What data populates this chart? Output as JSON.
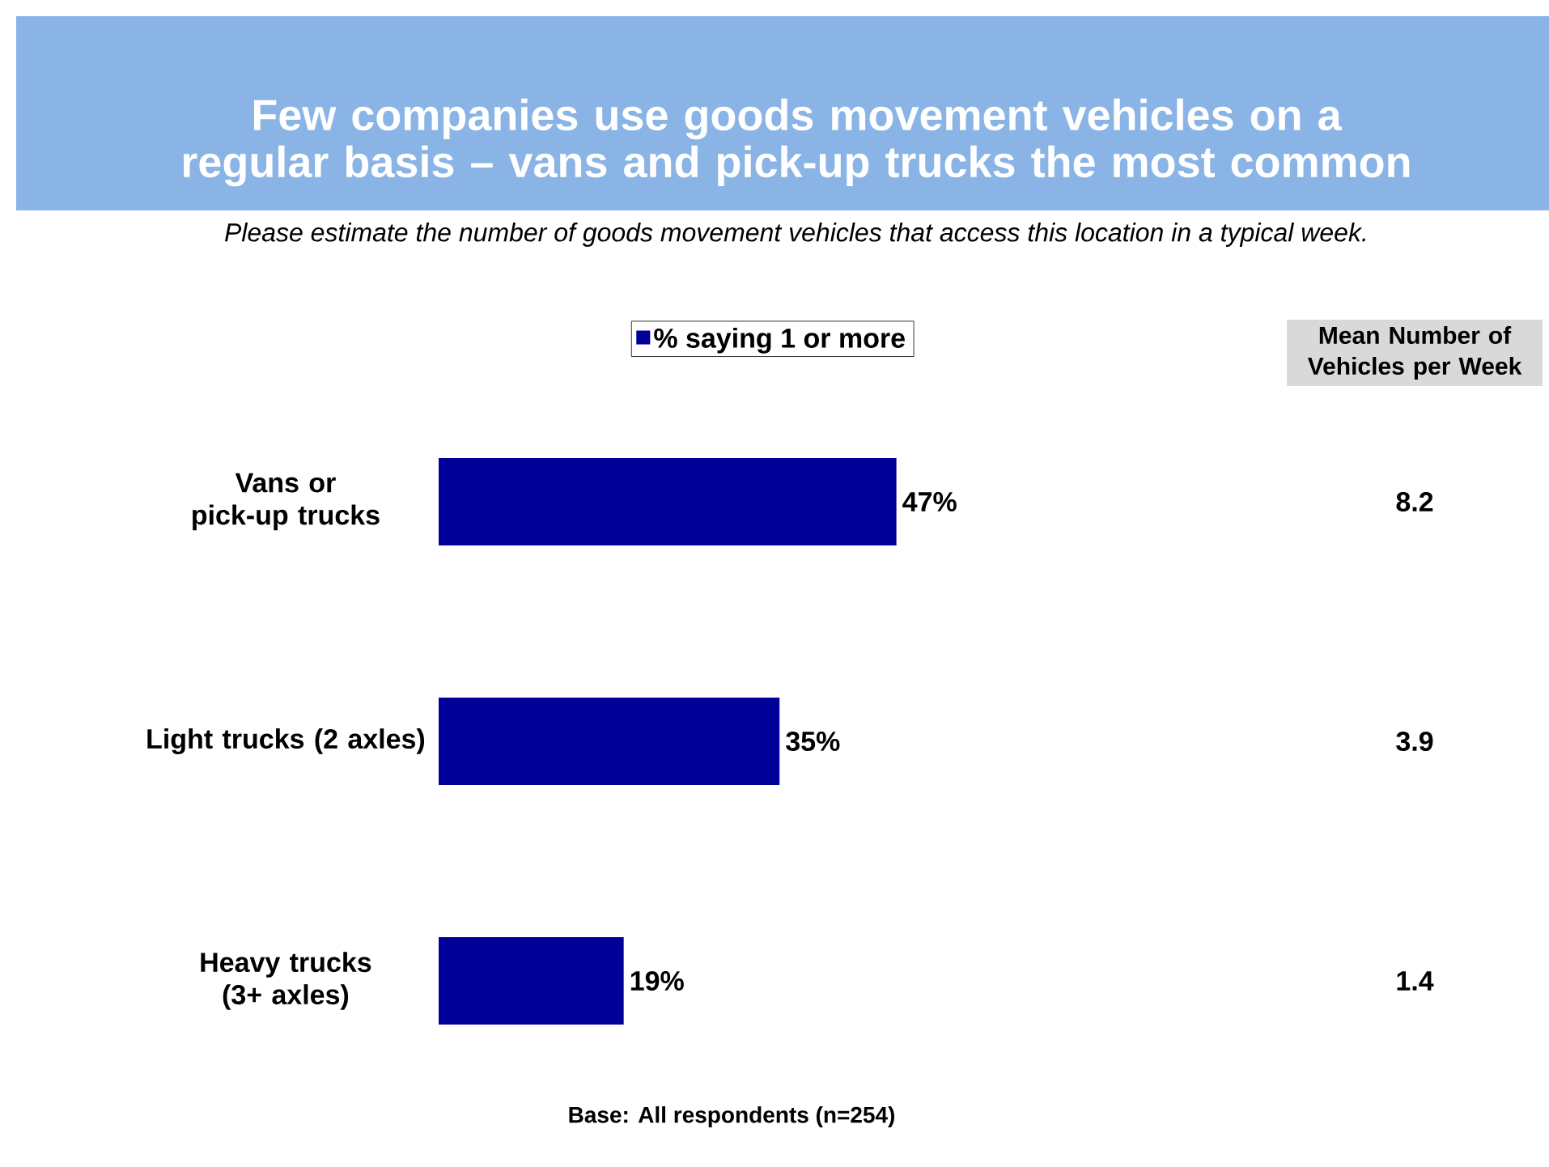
{
  "chart_data": [
    {
      "type": "bar",
      "orientation": "horizontal",
      "title": "Few companies use goods movement vehicles on a regular basis – vans and pick-up trucks the most common",
      "subtitle": "Please estimate the number of goods movement vehicles that access this location in a typical week.",
      "categories": [
        "Vans or pick-up trucks",
        "Light trucks (2 axles)",
        "Heavy trucks (3+ axles)"
      ],
      "series": [
        {
          "name": "% saying 1 or more",
          "color": "#000099",
          "values": [
            47,
            35,
            19
          ],
          "value_labels": [
            "47%",
            "35%",
            "19%"
          ]
        }
      ],
      "tick_labels": "y",
      "legend": "top",
      "annotations": [
        "Base: All respondents (n=254)"
      ]
    },
    {
      "type": "other",
      "title": "Mean Number of Vehicles per Week",
      "annotations": [
        "8.2",
        "3.9",
        "1.4"
      ]
    }
  ]
}
